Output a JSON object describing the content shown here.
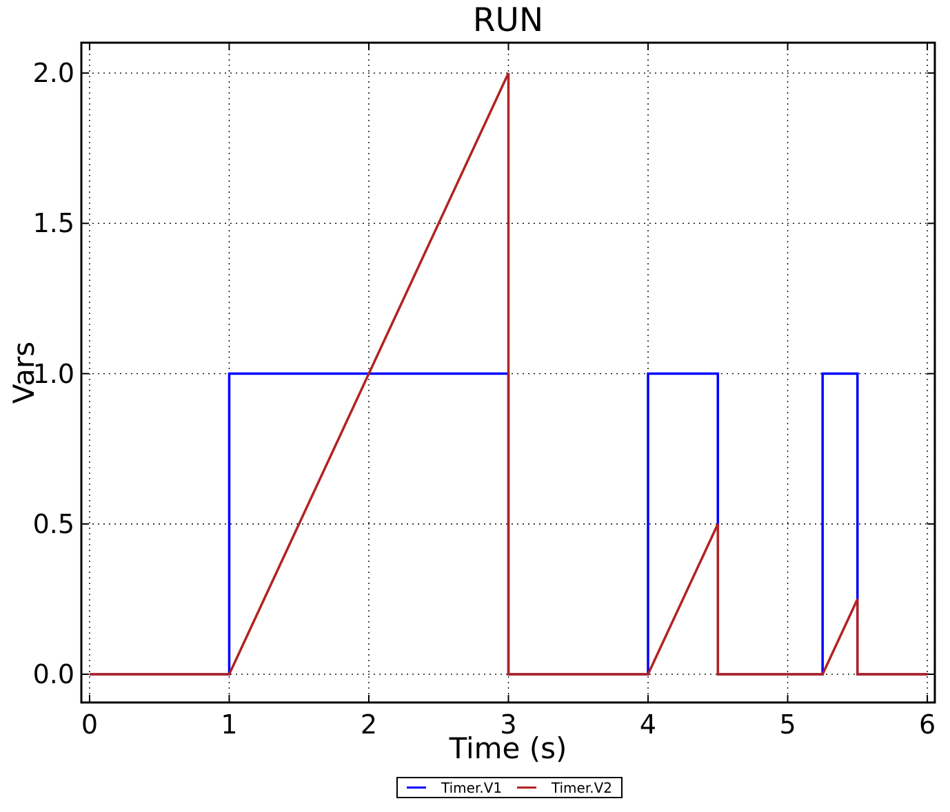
{
  "window": {
    "background": "#ffffff"
  },
  "title": "RUN",
  "legend": {
    "entries": [
      {
        "label": "Timer.V1",
        "color": "#0000ff"
      },
      {
        "label": "Timer.V2",
        "color": "#b22222"
      }
    ]
  },
  "chart_data": {
    "type": "line",
    "title": "RUN",
    "xlabel": "Time (s)",
    "ylabel": "Vars",
    "xlim": [
      -0.059,
      6.054
    ],
    "ylim": [
      -0.094,
      2.101
    ],
    "xticks": [
      0,
      1,
      2,
      3,
      4,
      5,
      6
    ],
    "xtick_labels": [
      "0",
      "1",
      "2",
      "3",
      "4",
      "5",
      "6"
    ],
    "yticks": [
      0,
      0.5,
      1,
      1.5,
      2
    ],
    "ytick_labels": [
      "0.0",
      "0.5",
      "1.0",
      "1.5",
      "2.0"
    ],
    "grid": true,
    "grid_style": "dotted",
    "legend_position": "bottom-outside-center",
    "series": [
      {
        "name": "Timer.V1",
        "color": "#0000ff",
        "points": [
          [
            0,
            0
          ],
          [
            1,
            0
          ],
          [
            1,
            1
          ],
          [
            3,
            1
          ],
          [
            3,
            0
          ],
          [
            4,
            0
          ],
          [
            4,
            1
          ],
          [
            4.5,
            1
          ],
          [
            4.5,
            0
          ],
          [
            5.25,
            0
          ],
          [
            5.25,
            1
          ],
          [
            5.5,
            1
          ],
          [
            5.5,
            0
          ],
          [
            6,
            0
          ]
        ]
      },
      {
        "name": "Timer.V2",
        "color": "#b22222",
        "points": [
          [
            0,
            0
          ],
          [
            1,
            0
          ],
          [
            3,
            2
          ],
          [
            3,
            0
          ],
          [
            4,
            0
          ],
          [
            4.5,
            0.5
          ],
          [
            4.5,
            0
          ],
          [
            5.25,
            0
          ],
          [
            5.5,
            0.25
          ],
          [
            5.5,
            0
          ],
          [
            6,
            0
          ]
        ]
      }
    ]
  }
}
